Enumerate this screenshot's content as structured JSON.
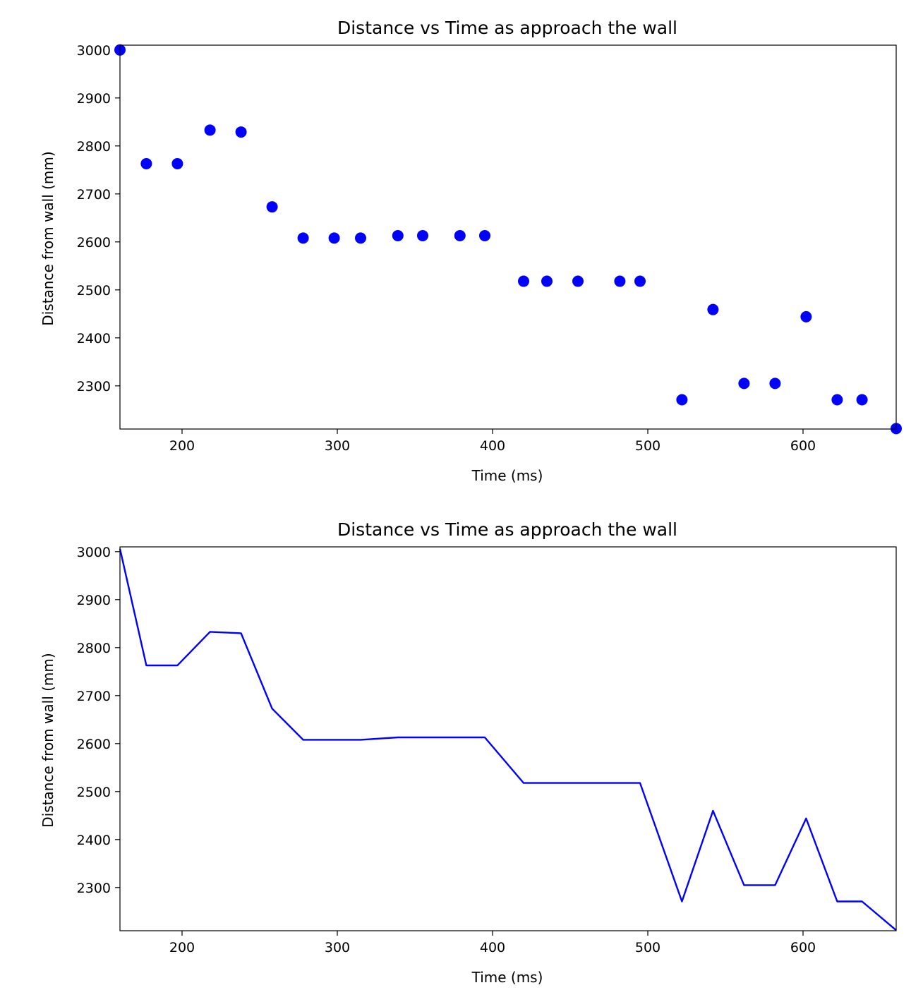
{
  "chart_data": [
    {
      "type": "scatter",
      "title": "Distance vs Time as approach the wall",
      "xlabel": "Time (ms)",
      "ylabel": "Distance from wall (mm)",
      "xlim": [
        160,
        660
      ],
      "ylim": [
        2210,
        3010
      ],
      "xticks": [
        200,
        300,
        400,
        500,
        600
      ],
      "yticks": [
        2300,
        2400,
        2500,
        2600,
        2700,
        2800,
        2900,
        3000
      ],
      "grid": false,
      "color": "#0000ff",
      "series": [
        {
          "x": [
            160,
            177,
            197,
            218,
            238,
            258,
            278,
            298,
            315,
            339,
            355,
            379,
            395,
            420,
            435,
            455,
            482,
            495,
            522,
            542,
            562,
            582,
            602,
            622,
            638,
            660
          ],
          "y": [
            3000,
            2763,
            2763,
            2833,
            2829,
            2673,
            2608,
            2608,
            2608,
            2613,
            2613,
            2613,
            2613,
            2518,
            2518,
            2518,
            2518,
            2518,
            2271,
            2459,
            2305,
            2305,
            2444,
            2271,
            2271,
            2211
          ]
        }
      ]
    },
    {
      "type": "line",
      "title": "Distance vs Time as approach the wall",
      "xlabel": "Time (ms)",
      "ylabel": "Distance from wall (mm)",
      "xlim": [
        160,
        660
      ],
      "ylim": [
        2210,
        3010
      ],
      "xticks": [
        200,
        300,
        400,
        500,
        600
      ],
      "yticks": [
        2300,
        2400,
        2500,
        2600,
        2700,
        2800,
        2900,
        3000
      ],
      "grid": false,
      "color": "#0000ff",
      "series": [
        {
          "x": [
            160,
            177,
            197,
            218,
            238,
            258,
            278,
            298,
            315,
            339,
            355,
            379,
            395,
            420,
            435,
            455,
            482,
            495,
            522,
            542,
            562,
            582,
            602,
            622,
            638,
            660
          ],
          "y": [
            3006,
            2763,
            2763,
            2833,
            2830,
            2673,
            2608,
            2608,
            2608,
            2613,
            2613,
            2613,
            2613,
            2518,
            2518,
            2518,
            2518,
            2518,
            2271,
            2460,
            2305,
            2305,
            2444,
            2271,
            2271,
            2211
          ]
        }
      ]
    }
  ]
}
